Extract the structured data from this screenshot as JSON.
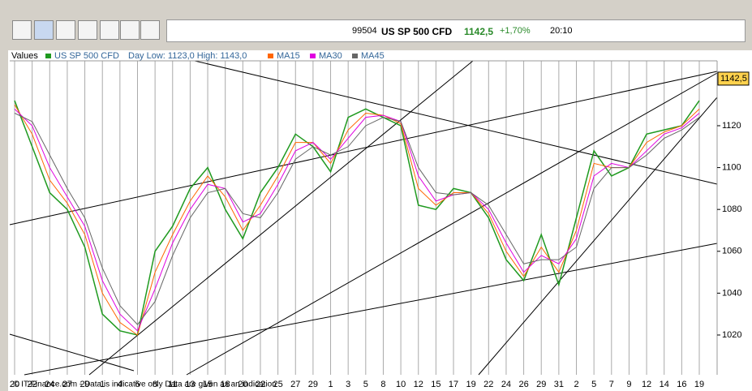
{
  "header": {
    "code": "99504",
    "instrument": "US SP 500 CFD",
    "price": "1142,5",
    "change": "+1,70%",
    "time": "20:10"
  },
  "chart_data": {
    "type": "line",
    "legend": {
      "label": "Values",
      "day_range": "Day Low: 1123,0 High: 1143,0"
    },
    "footer": "© IT-Finance.com - Data is indicative only Data are given as an indication",
    "categories": [
      "20",
      "22",
      "24",
      "27",
      "29",
      "1",
      "4",
      "6",
      "8",
      "11",
      "13",
      "15",
      "18",
      "20",
      "22",
      "25",
      "27",
      "29",
      "1",
      "3",
      "5",
      "8",
      "10",
      "12",
      "15",
      "17",
      "19",
      "22",
      "24",
      "26",
      "29",
      "31",
      "2",
      "5",
      "7",
      "9",
      "12",
      "14",
      "16",
      "19"
    ],
    "series": [
      {
        "name": "US SP 500 CFD",
        "color": "#1f9a1f",
        "values": [
          1132,
          1110,
          1088,
          1080,
          1062,
          1030,
          1022,
          1020,
          1060,
          1072,
          1090,
          1100,
          1080,
          1066,
          1088,
          1100,
          1116,
          1110,
          1098,
          1124,
          1128,
          1124,
          1120,
          1082,
          1080,
          1090,
          1088,
          1076,
          1056,
          1046,
          1068,
          1044,
          1076,
          1108,
          1096,
          1100,
          1116,
          1118,
          1120,
          1132
        ]
      },
      {
        "name": "MA15",
        "color": "#ff6600",
        "values": [
          1130,
          1116,
          1094,
          1083,
          1068,
          1040,
          1026,
          1020,
          1050,
          1068,
          1084,
          1096,
          1086,
          1070,
          1082,
          1096,
          1112,
          1112,
          1102,
          1118,
          1126,
          1125,
          1121,
          1090,
          1082,
          1088,
          1088,
          1078,
          1060,
          1048,
          1062,
          1050,
          1070,
          1102,
          1100,
          1100,
          1112,
          1117,
          1120,
          1128
        ]
      },
      {
        "name": "MA30",
        "color": "#e000e0",
        "values": [
          1128,
          1120,
          1100,
          1086,
          1072,
          1046,
          1030,
          1022,
          1042,
          1064,
          1080,
          1092,
          1090,
          1074,
          1078,
          1092,
          1108,
          1112,
          1104,
          1114,
          1124,
          1125,
          1122,
          1096,
          1084,
          1087,
          1088,
          1080,
          1064,
          1050,
          1058,
          1054,
          1066,
          1096,
          1102,
          1100,
          1108,
          1116,
          1119,
          1126
        ]
      },
      {
        "name": "MA45",
        "color": "#666666",
        "values": [
          1126,
          1122,
          1106,
          1090,
          1076,
          1052,
          1034,
          1025,
          1036,
          1058,
          1076,
          1088,
          1090,
          1078,
          1076,
          1088,
          1104,
          1110,
          1106,
          1110,
          1120,
          1124,
          1122,
          1100,
          1088,
          1087,
          1088,
          1082,
          1068,
          1054,
          1056,
          1056,
          1062,
          1090,
          1100,
          1100,
          1106,
          1114,
          1118,
          1124
        ]
      }
    ],
    "ylim": [
      1001,
      1151
    ],
    "yticks": [
      1020,
      1040,
      1060,
      1080,
      1100,
      1120
    ],
    "last_value": {
      "value": 1142.5,
      "label": "1142,5"
    },
    "grid": true
  }
}
